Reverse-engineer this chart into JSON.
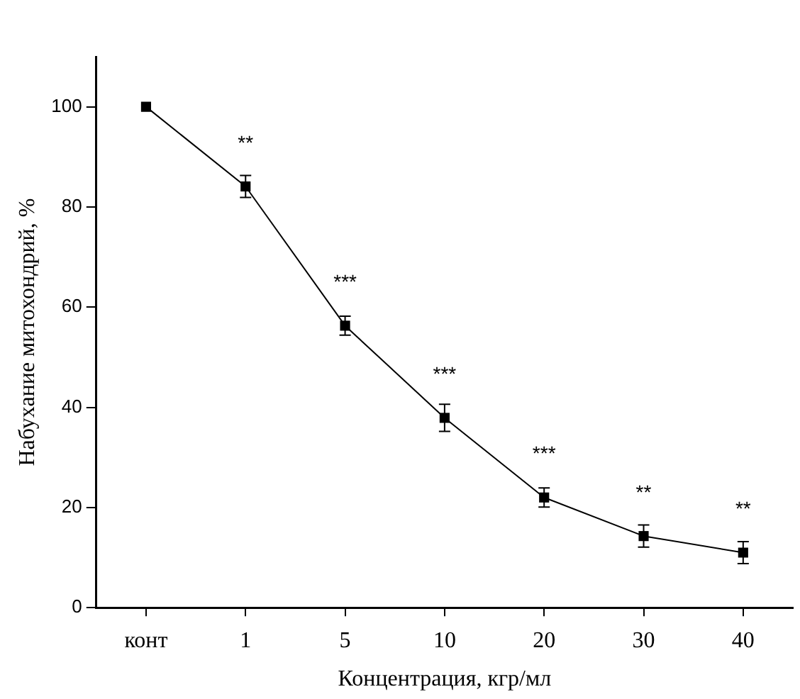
{
  "chart_data": {
    "type": "line",
    "xlabel": "Концентрация, кгр/мл",
    "ylabel": "Набухание митохондрий, %",
    "categories": [
      "конт",
      "1",
      "5",
      "10",
      "20",
      "30",
      "40"
    ],
    "series": [
      {
        "color": "#000000",
        "values": [
          100,
          84.1,
          56.3,
          37.9,
          22.0,
          14.3,
          11.0
        ],
        "errors": [
          null,
          2.2,
          1.9,
          2.7,
          1.9,
          2.2,
          2.2
        ]
      }
    ],
    "ylim": [
      0,
      110
    ],
    "yticks": [
      0,
      20,
      40,
      60,
      80,
      100
    ],
    "grid": false,
    "legend": false,
    "marker": "square",
    "line_style": "solid",
    "annotations": [
      {
        "text": "**",
        "x": "1",
        "y": 84.1
      },
      {
        "text": "***",
        "x": "5",
        "y": 56.3
      },
      {
        "text": "***",
        "x": "10",
        "y": 37.9
      },
      {
        "text": "***",
        "x": "20",
        "y": 22.0
      },
      {
        "text": "**",
        "x": "30",
        "y": 14.3
      },
      {
        "text": "**",
        "x": "40",
        "y": 11.0
      }
    ]
  }
}
